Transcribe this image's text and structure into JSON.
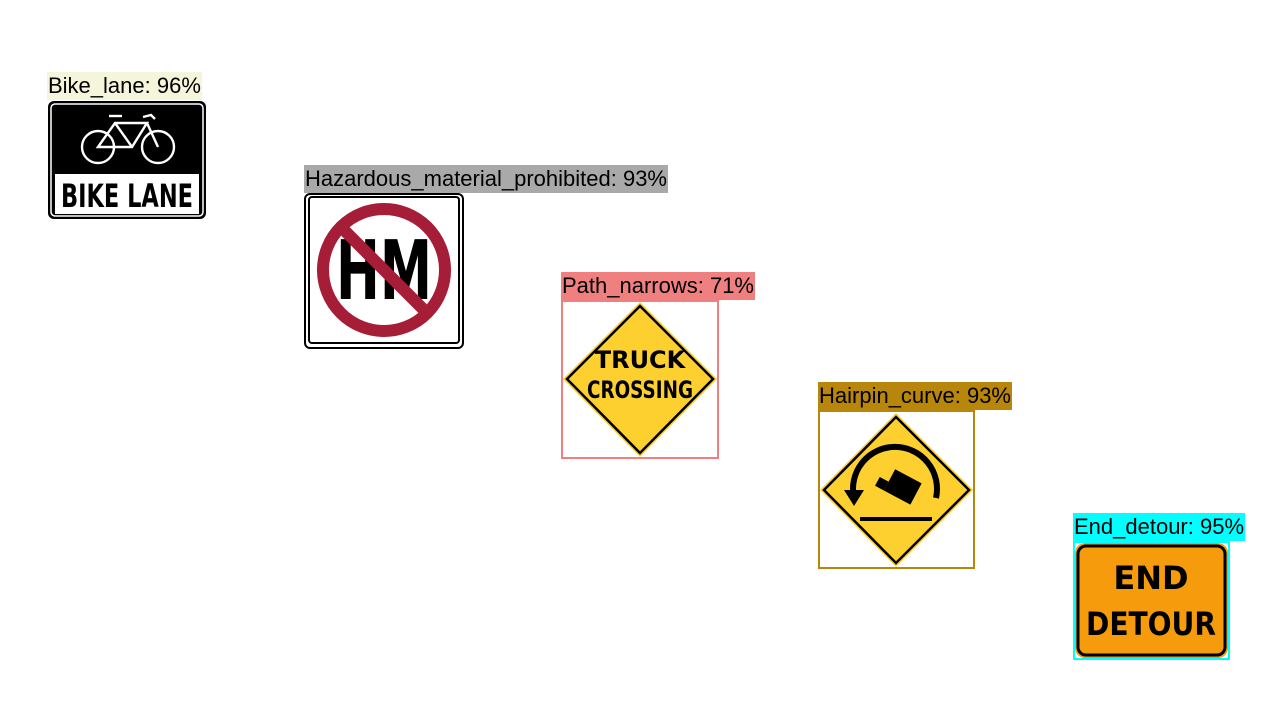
{
  "detections": [
    {
      "id": "bike",
      "label": "Bike_lane: 96%",
      "class": "Bike_lane",
      "confidence": 0.96,
      "color": "#f5f5dc",
      "sign_text": "BIKE LANE"
    },
    {
      "id": "hm",
      "label": "Hazardous_material_prohibited: 93%",
      "class": "Hazardous_material_prohibited",
      "confidence": 0.93,
      "color": "#a9a9a9",
      "sign_text": "HM"
    },
    {
      "id": "truck",
      "label": "Path_narrows: 71%",
      "class": "Path_narrows",
      "confidence": 0.71,
      "color": "#f08080",
      "sign_text_line1": "TRUCK",
      "sign_text_line2": "CROSSING"
    },
    {
      "id": "hairpin",
      "label": "Hairpin_curve: 93%",
      "class": "Hairpin_curve",
      "confidence": 0.93,
      "color": "#b8860b"
    },
    {
      "id": "detour",
      "label": "End_detour: 95%",
      "class": "End_detour",
      "confidence": 0.95,
      "color": "#00ffff",
      "sign_text_line1": "END",
      "sign_text_line2": "DETOUR"
    }
  ],
  "sign_colors": {
    "yellow": "#fdd030",
    "orange": "#f59b0c",
    "prohibition_red": "#a51d36",
    "black": "#000000",
    "white": "#ffffff"
  }
}
